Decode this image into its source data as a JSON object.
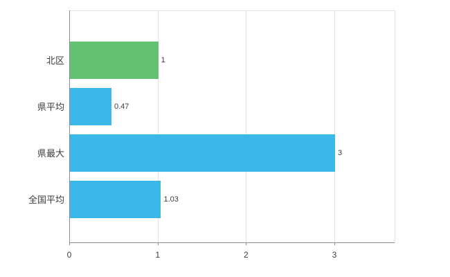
{
  "chart_data": {
    "type": "bar",
    "orientation": "horizontal",
    "title": "",
    "xlabel": "",
    "ylabel": "",
    "categories": [
      "北区",
      "県平均",
      "県最大",
      "全国平均"
    ],
    "values": [
      1,
      0.47,
      3,
      1.03
    ],
    "value_labels": [
      "1",
      "0.47",
      "3",
      "1.03"
    ],
    "bar_colors": [
      "#63c271",
      "#3ab8e8",
      "#3ab8e8",
      "#3ab8e8"
    ],
    "xticks": [
      0,
      1,
      2,
      3
    ],
    "xtick_labels": [
      "0",
      "1",
      "2",
      "3"
    ],
    "xlim": [
      0,
      3.68
    ],
    "grid": true,
    "legend": "none",
    "background_color": "#ffffff",
    "gridline_color": "#e3e3e3",
    "axis_color": "#8c8c8c",
    "text_color": "#3c3c3c"
  }
}
